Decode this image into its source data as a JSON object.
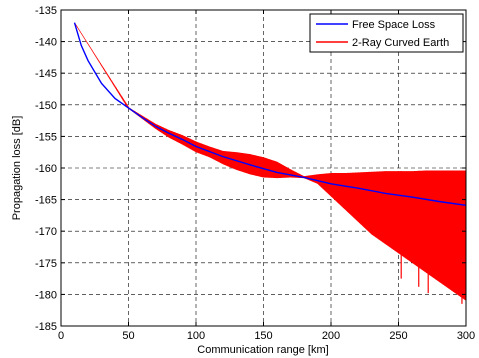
{
  "chart_data": {
    "type": "line",
    "xlabel": "Communication range [km]",
    "ylabel": "Propagation loss [dB]",
    "xlim": [
      0,
      300
    ],
    "ylim": [
      -185,
      -135
    ],
    "xticks": [
      "0",
      "50",
      "100",
      "150",
      "200",
      "250",
      "300"
    ],
    "yticks": [
      "-135",
      "-140",
      "-145",
      "-150",
      "-155",
      "-160",
      "-165",
      "-170",
      "-175",
      "-180",
      "-185"
    ],
    "grid": "dashed",
    "legend_position": "top-right",
    "series": [
      {
        "name": "Free Space Loss",
        "color": "#0000ff",
        "x": [
          10,
          15,
          20,
          30,
          40,
          50,
          60,
          70,
          80,
          90,
          100,
          120,
          140,
          160,
          180,
          200,
          220,
          240,
          260,
          280,
          300
        ],
        "y": [
          -137.0,
          -140.6,
          -143.0,
          -146.6,
          -149.0,
          -150.5,
          -152.0,
          -153.4,
          -154.5,
          -155.5,
          -156.6,
          -158.2,
          -159.5,
          -160.7,
          -161.5,
          -162.5,
          -163.2,
          -164.0,
          -164.6,
          -165.3,
          -165.9
        ]
      },
      {
        "name": "2-Ray Curved Earth",
        "color": "#ff0000",
        "x": [
          10,
          50,
          70,
          80,
          90,
          100,
          110,
          120,
          130,
          140,
          150,
          160,
          170,
          180,
          190,
          200,
          210,
          220,
          230,
          240,
          250,
          260,
          270,
          280,
          290,
          300
        ],
        "y_upper": [
          -137.0,
          -150.4,
          -153.0,
          -154.0,
          -154.8,
          -155.8,
          -156.6,
          -157.3,
          -157.5,
          -157.8,
          -158.3,
          -159.0,
          -160.2,
          -161.3,
          -161.0,
          -160.8,
          -160.8,
          -160.7,
          -160.6,
          -160.5,
          -160.5,
          -160.5,
          -160.4,
          -160.4,
          -160.4,
          -160.4
        ],
        "y_lower": [
          -137.0,
          -150.6,
          -153.8,
          -155.2,
          -156.3,
          -157.5,
          -158.3,
          -159.4,
          -160.3,
          -161.0,
          -161.5,
          -161.6,
          -161.5,
          -161.6,
          -162.5,
          -164.5,
          -166.5,
          -168.5,
          -170.5,
          -172.0,
          -173.5,
          -175.0,
          -176.5,
          -178.0,
          -179.5,
          -181.0
        ],
        "dips": [
          {
            "x": 252,
            "y": -177.5
          },
          {
            "x": 265,
            "y": -178.8
          },
          {
            "x": 272,
            "y": -179.8
          },
          {
            "x": 297,
            "y": -181.5
          }
        ]
      }
    ]
  }
}
